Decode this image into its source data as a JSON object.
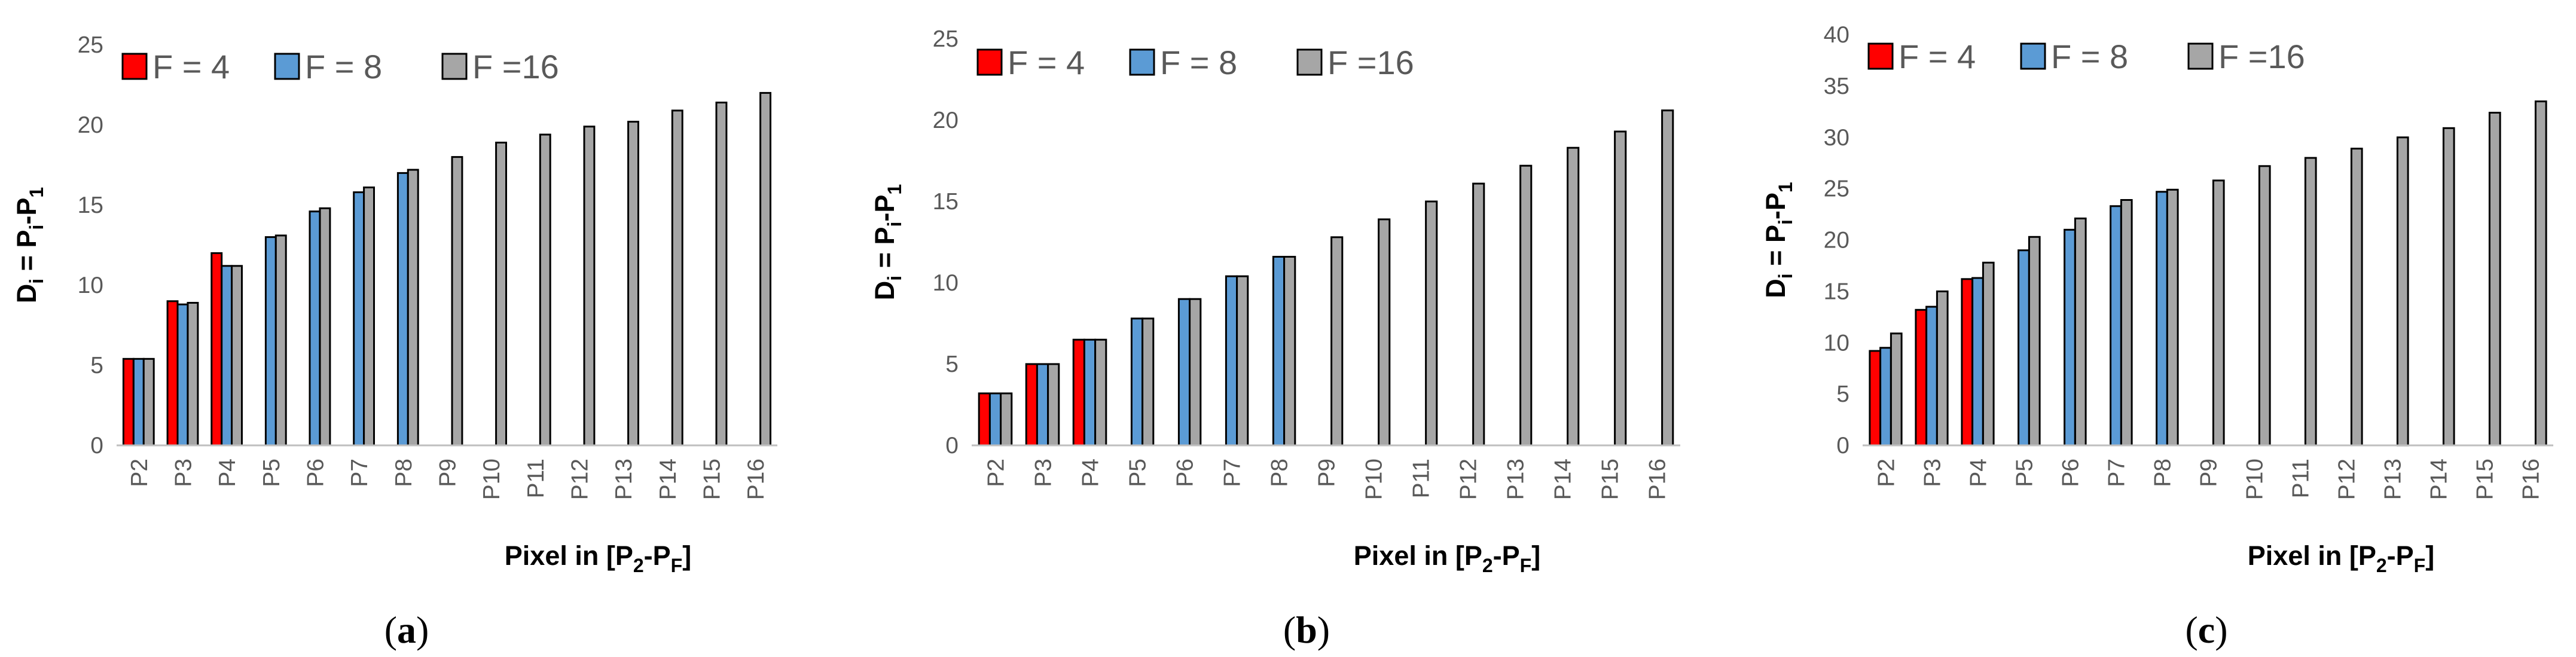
{
  "chart_data": [
    {
      "type": "bar",
      "caption": "a",
      "categories": [
        "P2",
        "P3",
        "P4",
        "P5",
        "P6",
        "P7",
        "P8",
        "P9",
        "P10",
        "P11",
        "P12",
        "P13",
        "P14",
        "P15",
        "P16"
      ],
      "series": [
        {
          "name": "F = 4",
          "color": "#ff0000",
          "values": [
            5.4,
            9.0,
            12.0,
            null,
            null,
            null,
            null,
            null,
            null,
            null,
            null,
            null,
            null,
            null,
            null
          ]
        },
        {
          "name": "F = 8",
          "color": "#5b9bd5",
          "values": [
            5.4,
            8.8,
            11.2,
            13.0,
            14.6,
            15.8,
            17.0,
            null,
            null,
            null,
            null,
            null,
            null,
            null,
            null
          ]
        },
        {
          "name": "F =16",
          "color": "#a6a6a6",
          "values": [
            5.4,
            8.9,
            11.2,
            13.1,
            14.8,
            16.1,
            17.2,
            18.0,
            18.9,
            19.4,
            19.9,
            20.2,
            20.9,
            21.4,
            22.0
          ]
        }
      ],
      "xlabel": "Pixel in [P2-PF]",
      "ylabel": "Di = Pi-P1",
      "ylim": [
        0,
        25
      ],
      "yticks": [
        0,
        5,
        10,
        15,
        20,
        25
      ],
      "grid": false,
      "legend": "top-left"
    },
    {
      "type": "bar",
      "caption": "b",
      "categories": [
        "P2",
        "P3",
        "P4",
        "P5",
        "P6",
        "P7",
        "P8",
        "P9",
        "P10",
        "P11",
        "P12",
        "P13",
        "P14",
        "P15",
        "P16"
      ],
      "series": [
        {
          "name": "F = 4",
          "color": "#ff0000",
          "values": [
            3.2,
            5.0,
            6.5,
            null,
            null,
            null,
            null,
            null,
            null,
            null,
            null,
            null,
            null,
            null,
            null
          ]
        },
        {
          "name": "F = 8",
          "color": "#5b9bd5",
          "values": [
            3.2,
            5.0,
            6.5,
            7.8,
            9.0,
            10.4,
            11.6,
            null,
            null,
            null,
            null,
            null,
            null,
            null,
            null
          ]
        },
        {
          "name": "F =16",
          "color": "#a6a6a6",
          "values": [
            3.2,
            5.0,
            6.5,
            7.8,
            9.0,
            10.4,
            11.6,
            12.8,
            13.9,
            15.0,
            16.1,
            17.2,
            18.3,
            19.3,
            20.6
          ]
        }
      ],
      "xlabel": "Pixel in [P2-PF]",
      "ylabel": "Di = Pi-P1",
      "ylim": [
        0,
        25
      ],
      "yticks": [
        0,
        5,
        10,
        15,
        20,
        25
      ],
      "grid": false,
      "legend": "top-left"
    },
    {
      "type": "bar",
      "caption": "c",
      "categories": [
        "P2",
        "P3",
        "P4",
        "P5",
        "P6",
        "P7",
        "P8",
        "P9",
        "P10",
        "P11",
        "P12",
        "P13",
        "P14",
        "P15",
        "P16"
      ],
      "series": [
        {
          "name": "F = 4",
          "color": "#ff0000",
          "values": [
            9.2,
            13.2,
            16.2,
            null,
            null,
            null,
            null,
            null,
            null,
            null,
            null,
            null,
            null,
            null,
            null
          ]
        },
        {
          "name": "F = 8",
          "color": "#5b9bd5",
          "values": [
            9.5,
            13.5,
            16.3,
            19.0,
            21.0,
            23.3,
            24.7,
            null,
            null,
            null,
            null,
            null,
            null,
            null,
            null
          ]
        },
        {
          "name": "F =16",
          "color": "#a6a6a6",
          "values": [
            10.9,
            15.0,
            17.8,
            20.3,
            22.1,
            23.9,
            24.9,
            25.8,
            27.2,
            28.0,
            28.9,
            30.0,
            30.9,
            32.4,
            33.5
          ]
        }
      ],
      "xlabel": "Pixel in [P2-PF]",
      "ylabel": "Di = Pi-P1",
      "ylim": [
        0,
        40
      ],
      "yticks": [
        0,
        5,
        10,
        15,
        20,
        25,
        30,
        35,
        40
      ],
      "grid": false,
      "legend": "top-left"
    }
  ]
}
